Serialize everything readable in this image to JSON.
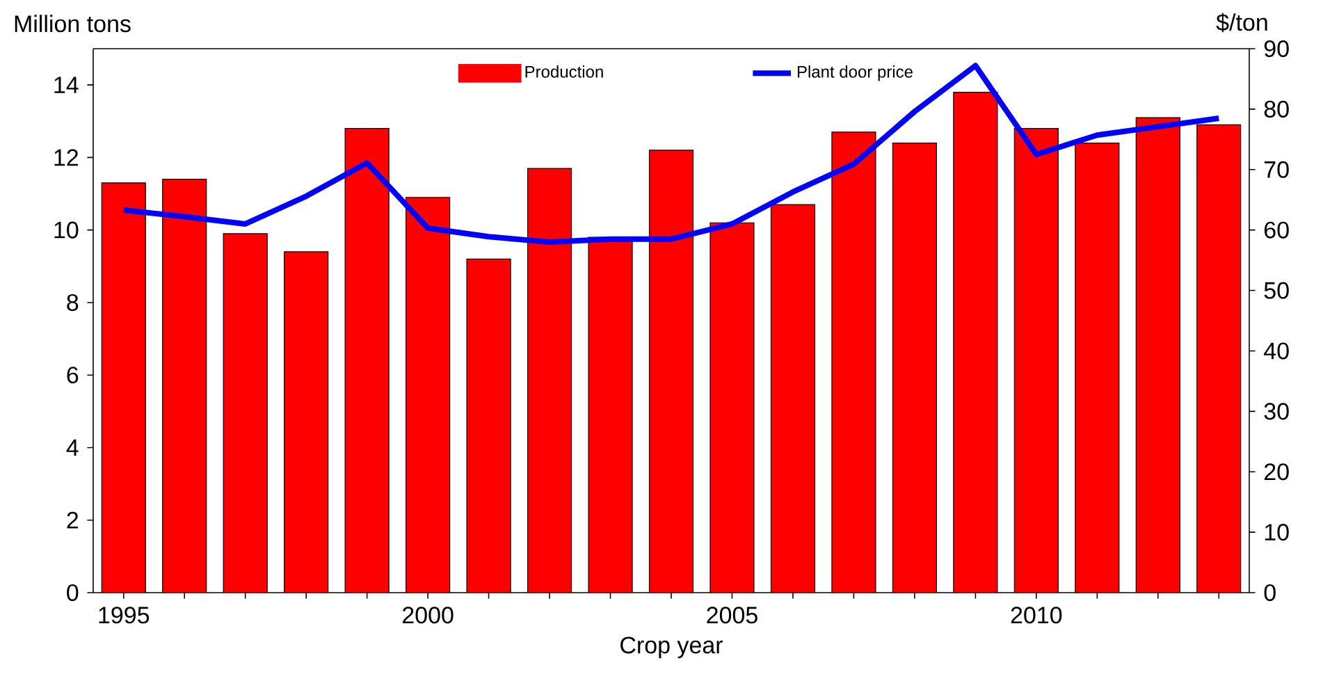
{
  "chart_data": {
    "type": "bar",
    "categories": [
      "1995",
      null,
      null,
      null,
      null,
      "2000",
      null,
      null,
      null,
      null,
      "2005",
      null,
      null,
      null,
      null,
      "2010",
      null,
      null,
      null
    ],
    "series": [
      {
        "name": "Production",
        "color": "#ff0000",
        "values": [
          11.3,
          11.4,
          9.9,
          9.4,
          12.8,
          10.9,
          9.2,
          11.7,
          9.8,
          12.2,
          10.2,
          10.7,
          12.7,
          12.4,
          13.8,
          12.8,
          12.4,
          13.1,
          12.9
        ]
      },
      {
        "name": "Plant door price",
        "type": "line",
        "axis": "y2",
        "color": "#0000ff",
        "values": [
          63.3,
          62.2,
          61.0,
          65.6,
          71.1,
          60.3,
          58.9,
          58.0,
          58.5,
          58.5,
          61.0,
          66.3,
          70.9,
          79.6,
          87.2,
          72.5,
          75.7,
          77.1,
          78.5
        ]
      }
    ],
    "xlabel": "Crop year",
    "ylabel": "Million tons",
    "y2label": "$/ton",
    "ylim": [
      0,
      15
    ],
    "yticks": [
      0,
      2,
      4,
      6,
      8,
      10,
      12,
      14
    ],
    "y2lim": [
      0,
      90
    ],
    "y2ticks": [
      0,
      10,
      20,
      30,
      40,
      50,
      60,
      70,
      80,
      90
    ],
    "legend": "top",
    "marker": "none"
  }
}
